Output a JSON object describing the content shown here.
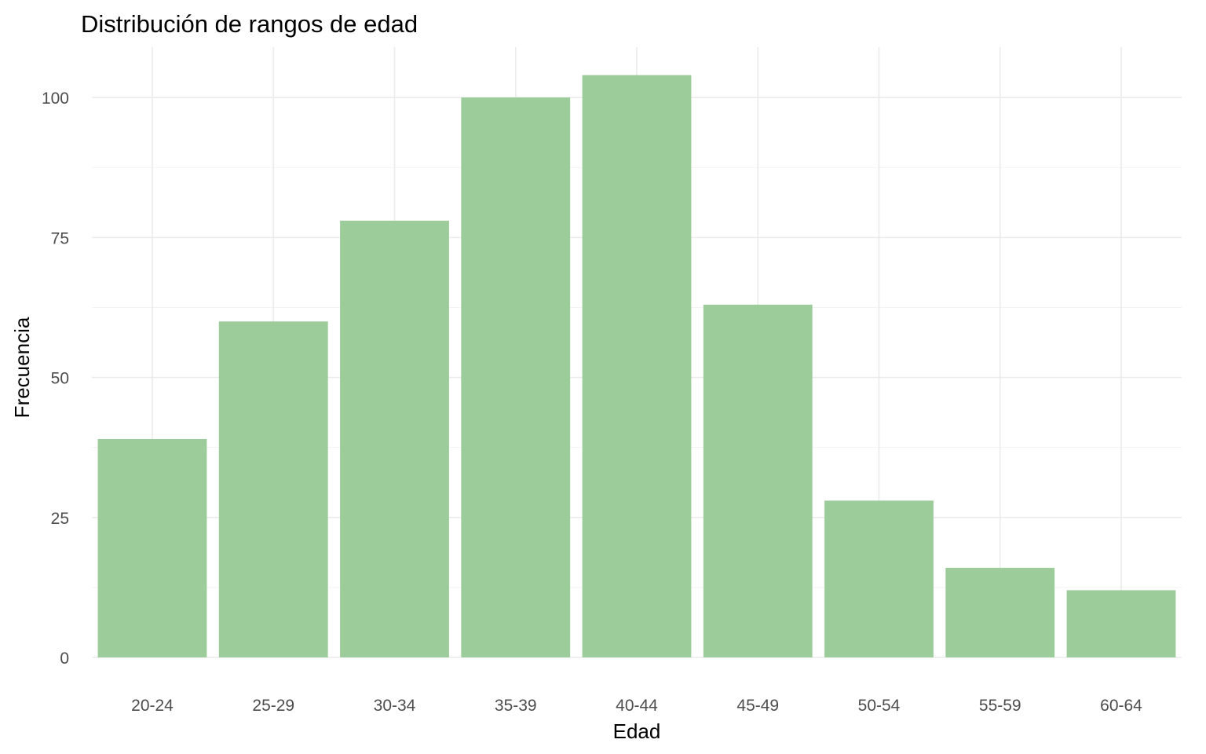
{
  "chart_data": {
    "type": "bar",
    "title": "Distribución de rangos de edad",
    "xlabel": "Edad",
    "ylabel": "Frecuencia",
    "categories": [
      "20-24",
      "25-29",
      "30-34",
      "35-39",
      "40-44",
      "45-49",
      "50-54",
      "55-59",
      "60-64"
    ],
    "values": [
      39,
      60,
      78,
      100,
      104,
      63,
      28,
      16,
      12
    ],
    "ylim": [
      0,
      109
    ],
    "yticks": [
      0,
      25,
      50,
      75,
      100
    ],
    "grid": true,
    "legend": "none",
    "bar_color": "#9ccc99"
  }
}
